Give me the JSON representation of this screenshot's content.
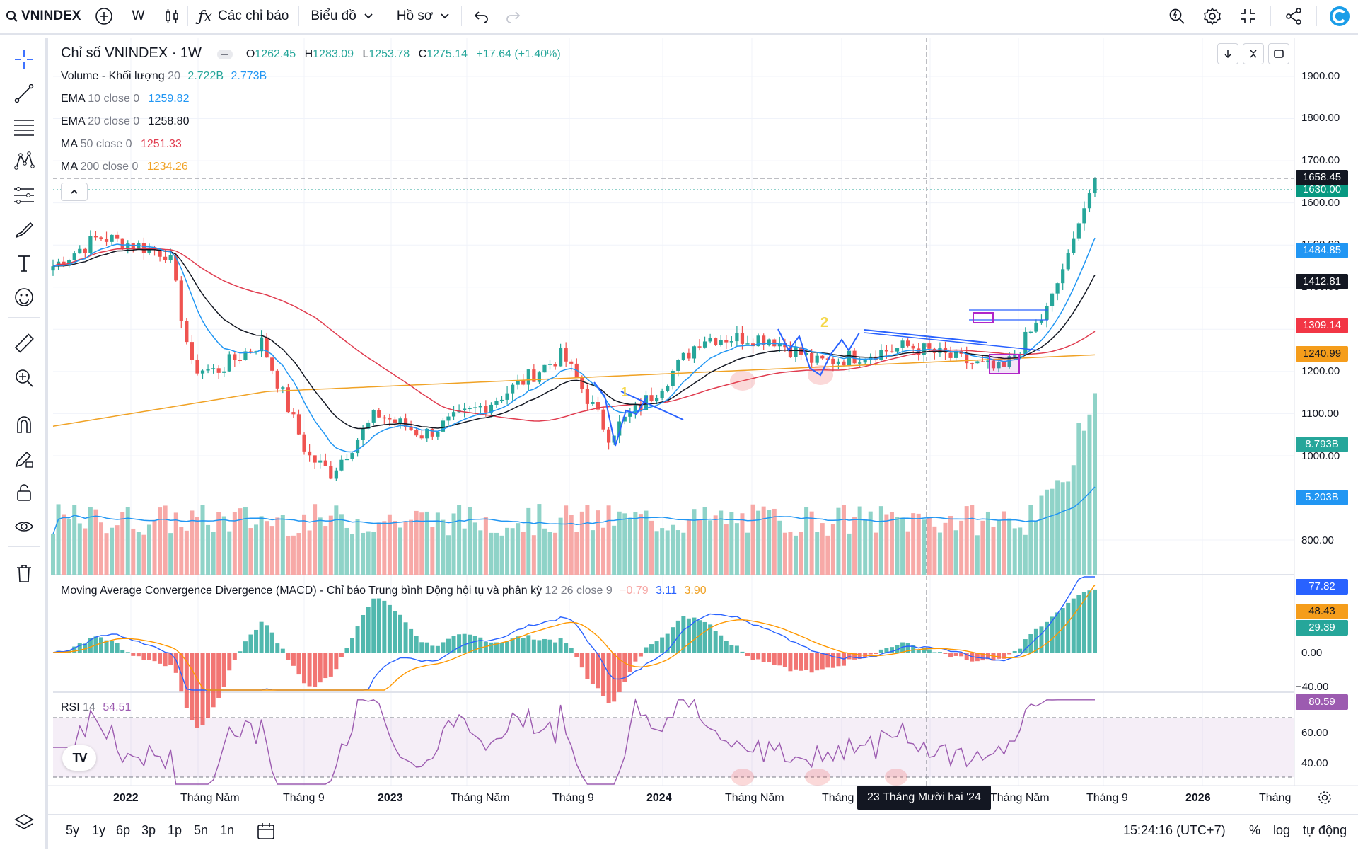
{
  "toolbar": {
    "symbol": "VNINDEX",
    "interval": "W",
    "indicators_label": "Các chỉ báo",
    "chart_type_label": "Biểu đồ",
    "profile_label": "Hồ sơ"
  },
  "legend": {
    "title": "Chỉ số VNINDEX · 1W",
    "o_key": "O",
    "o_val": "1262.45",
    "h_key": "H",
    "h_val": "1283.09",
    "l_key": "L",
    "l_val": "1253.78",
    "c_key": "C",
    "c_val": "1275.14",
    "change": "+17.64 (+1.40%)",
    "volume_name": "Volume - Khối lượng",
    "volume_param": "20",
    "volume_v1": "2.722B",
    "volume_v2": "2.773B",
    "ema10_name": "EMA",
    "ema10_param": "10 close 0",
    "ema10_val": "1259.82",
    "ema20_name": "EMA",
    "ema20_param": "20 close 0",
    "ema20_val": "1258.80",
    "ma50_name": "MA",
    "ma50_param": "50 close 0",
    "ma50_val": "1251.33",
    "ma200_name": "MA",
    "ma200_param": "200 close 0",
    "ma200_val": "1234.26",
    "macd_name": "Moving Average Convergence Divergence (MACD) - Chỉ báo Trung bình Động hội tụ và phân kỳ",
    "macd_param": "12 26 close 9",
    "macd_hist": "−0.79",
    "macd_line": "3.11",
    "macd_signal": "3.90",
    "rsi_name": "RSI",
    "rsi_param": "14",
    "rsi_val": "54.51"
  },
  "price_axis": [
    "1900.00",
    "1800.00",
    "1700.00",
    "1600.00",
    "1500.00",
    "1400.00",
    "1300.00",
    "1200.00",
    "1100.00",
    "1000.00",
    "800.00"
  ],
  "macd_axis": [
    "0.00",
    "−40.00"
  ],
  "rsi_axis": [
    "60.00",
    "40.00"
  ],
  "price_labels": {
    "last": "1658.45",
    "prev": "1630.00",
    "ema10": "1484.85",
    "ema20": "1412.81",
    "ma50": "1309.14",
    "ma200": "1240.99",
    "vol": "8.793B",
    "vol_ma": "5.203B",
    "macd_hist": "77.82",
    "macd_line": "48.43",
    "macd_signal": "29.39",
    "rsi": "80.59"
  },
  "time_axis": [
    "2022",
    "Tháng Năm",
    "Tháng 9",
    "2023",
    "Tháng Năm",
    "Tháng 9",
    "2024",
    "Tháng Năm",
    "Tháng",
    "Tháng Năm",
    "Tháng 9",
    "2026",
    "Tháng"
  ],
  "crosshair_date": "23 Tháng Mười hai '24",
  "annotations": {
    "wave1": "1",
    "wave2": "2"
  },
  "ranges": [
    "5y",
    "1y",
    "6p",
    "3p",
    "1p",
    "5n",
    "1n"
  ],
  "clock": "15:24:16 (UTC+7)",
  "percent": "%",
  "log": "log",
  "auto": "tự động",
  "colors": {
    "up": "#26a69a",
    "down": "#ef5350",
    "ema10": "#2196f3",
    "ema20": "#131722",
    "ma50": "#e03c4f",
    "ma200": "#f0a225",
    "vol_up": "#8fd3c8",
    "vol_down": "#f7a9a7",
    "macd": "#2962ff",
    "signal": "#ff9800",
    "rsi": "#9c5bb0"
  },
  "chart_data": {
    "type": "candlestick",
    "title": "Chỉ số VNINDEX · 1W",
    "x_range": [
      "2021-11",
      "2025-08"
    ],
    "ylim": [
      750,
      1950
    ],
    "close_path": [
      {
        "date": "2021-11",
        "close": 1450
      },
      {
        "date": "2022-01",
        "close": 1520
      },
      {
        "date": "2022-04",
        "close": 1480
      },
      {
        "date": "2022-05",
        "close": 1210
      },
      {
        "date": "2022-06",
        "close": 1200
      },
      {
        "date": "2022-08",
        "close": 1270
      },
      {
        "date": "2022-10",
        "close": 1000
      },
      {
        "date": "2022-11",
        "close": 960
      },
      {
        "date": "2023-01",
        "close": 1100
      },
      {
        "date": "2023-03",
        "close": 1050
      },
      {
        "date": "2023-06",
        "close": 1130
      },
      {
        "date": "2023-09",
        "close": 1240
      },
      {
        "date": "2023-11",
        "close": 1050
      },
      {
        "date": "2024-01",
        "close": 1150
      },
      {
        "date": "2024-03",
        "close": 1280
      },
      {
        "date": "2024-06",
        "close": 1280
      },
      {
        "date": "2024-08",
        "close": 1220
      },
      {
        "date": "2024-12",
        "close": 1260
      },
      {
        "date": "2025-04",
        "close": 1200
      },
      {
        "date": "2025-06",
        "close": 1350
      },
      {
        "date": "2025-08",
        "close": 1658.45
      }
    ]
  }
}
